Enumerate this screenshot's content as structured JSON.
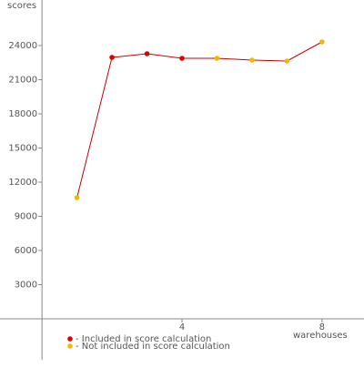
{
  "chart_data": {
    "type": "line",
    "y_label": "scores",
    "x_label": "warehouses",
    "x": [
      1,
      2,
      3,
      4,
      5,
      6,
      7,
      8
    ],
    "values": [
      10640,
      22960,
      23280,
      22880,
      22880,
      22720,
      22640,
      24320
    ],
    "line_color": "#cc0000",
    "point_colors": [
      "#f0b800",
      "#dd0000",
      "#dd0000",
      "#dd0000",
      "#f0b800",
      "#f0b800",
      "#f0b800",
      "#f0b800"
    ],
    "legend": [
      {
        "label": "- Included in score calculation",
        "color": "#dd0000"
      },
      {
        "label": "- Not included in score calculation",
        "color": "#f0b800"
      }
    ],
    "xlim": [
      -1.2,
      9.2
    ],
    "xticks": [
      4,
      8
    ],
    "ylim": [
      -3600,
      28000
    ],
    "yticks": [
      3000,
      6000,
      9000,
      12000,
      15000,
      18000,
      21000,
      24000
    ]
  }
}
